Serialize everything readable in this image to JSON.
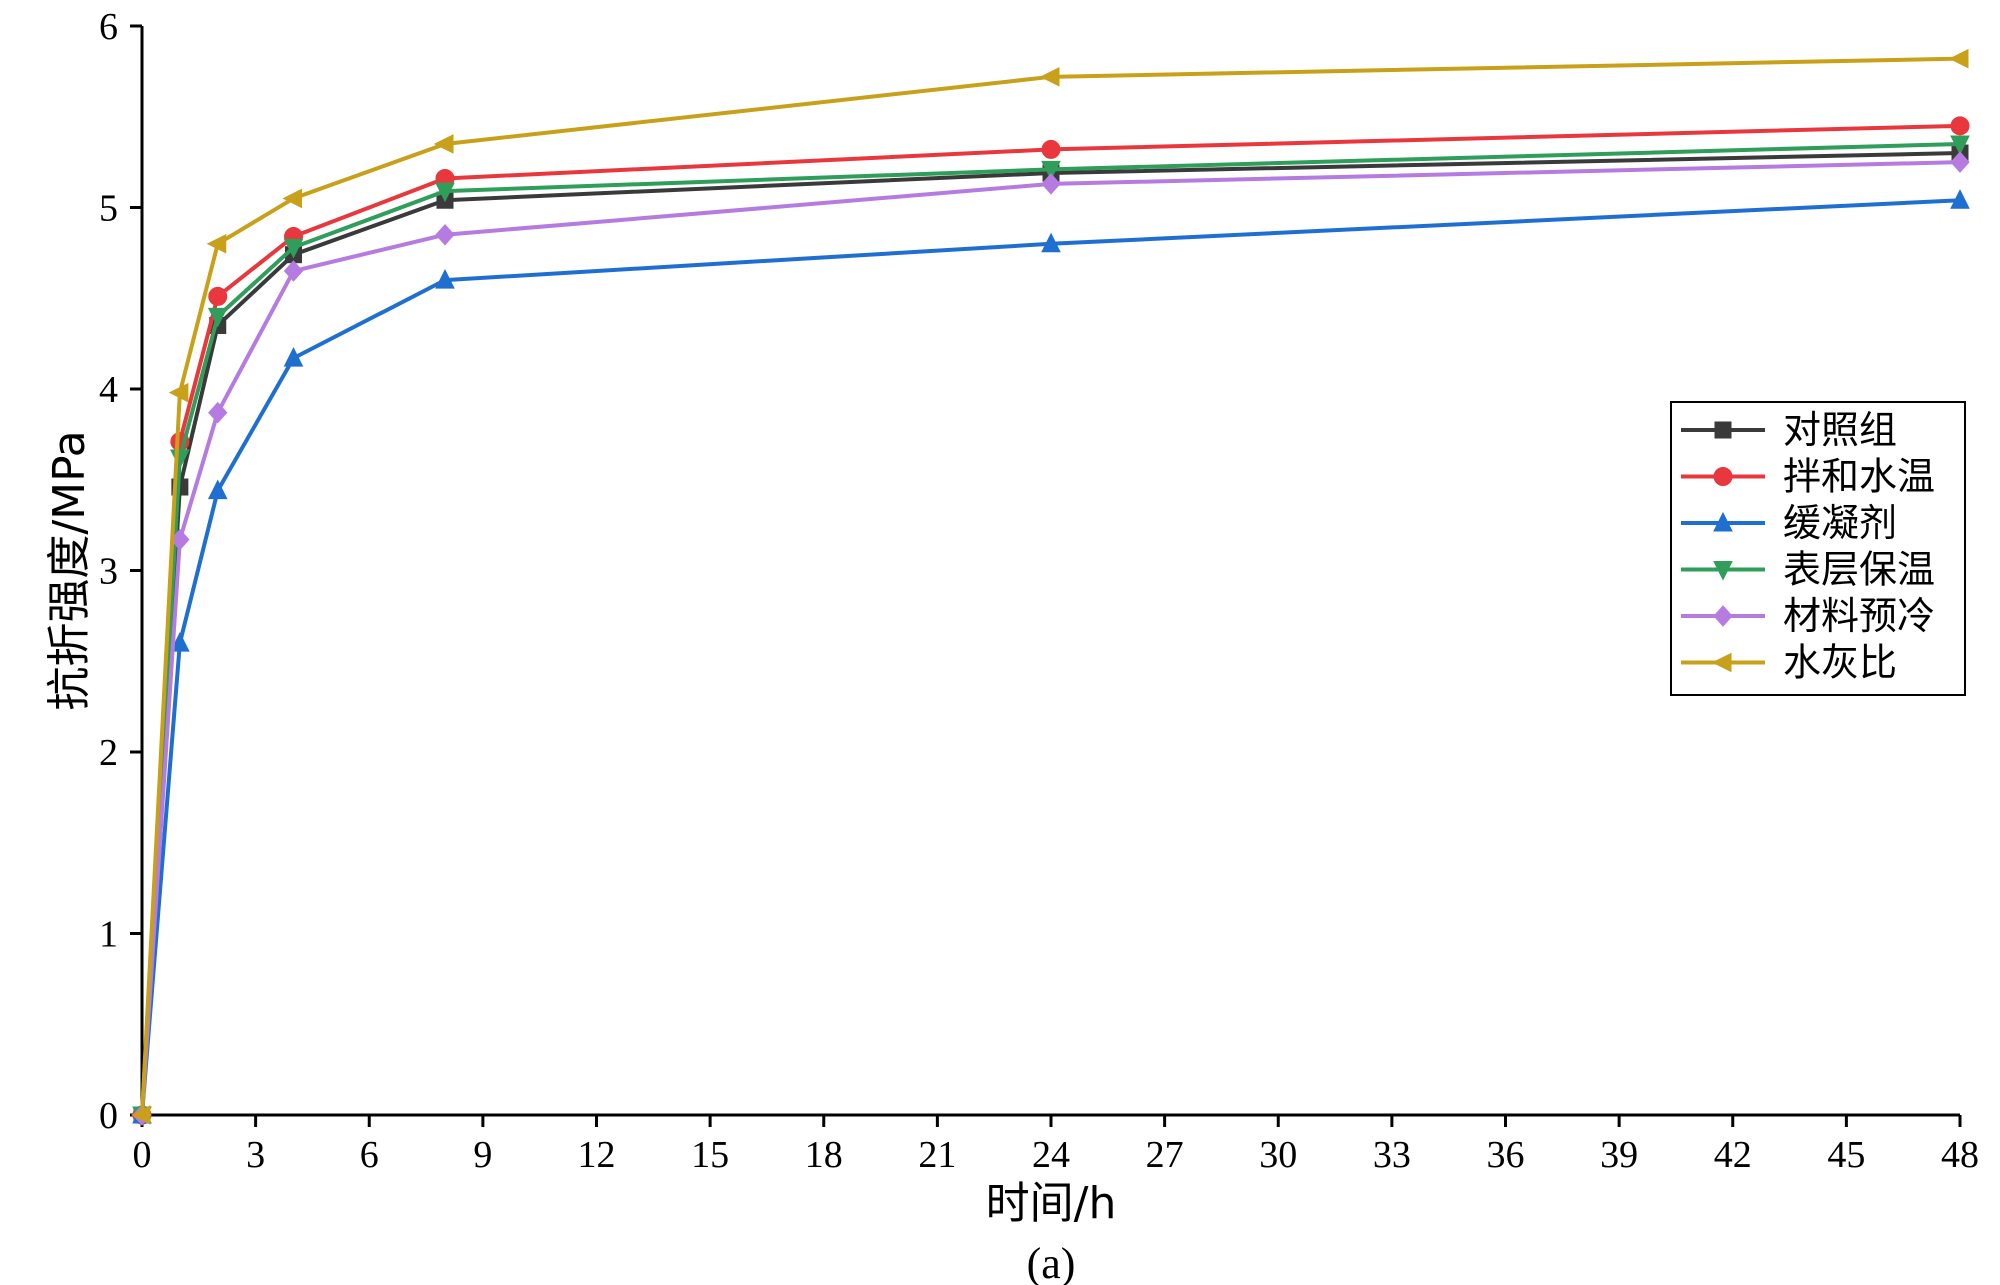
{
  "chart_data": {
    "type": "line",
    "title": "",
    "caption": "(a)",
    "xlabel": "时间/h",
    "ylabel": "抗折强度/MPa",
    "xlim": [
      0,
      48
    ],
    "ylim": [
      0,
      6
    ],
    "xticks": [
      0,
      3,
      6,
      9,
      12,
      15,
      18,
      21,
      24,
      27,
      30,
      33,
      36,
      39,
      42,
      45,
      48
    ],
    "yticks": [
      0,
      1,
      2,
      3,
      4,
      5,
      6
    ],
    "grid": false,
    "legend_position": "right",
    "x": [
      0,
      1,
      2,
      4,
      8,
      24,
      48
    ],
    "series": [
      {
        "name": "对照组",
        "color": "#3a3a3a",
        "marker": "square",
        "values": [
          0,
          3.46,
          4.35,
          4.74,
          5.04,
          5.19,
          5.3
        ]
      },
      {
        "name": "拌和水温",
        "color": "#e8383d",
        "marker": "circle",
        "values": [
          0,
          3.71,
          4.51,
          4.84,
          5.16,
          5.32,
          5.45
        ]
      },
      {
        "name": "缓凝剂",
        "color": "#1f6fd1",
        "marker": "triangle-up",
        "values": [
          0,
          2.6,
          3.44,
          4.17,
          4.6,
          4.8,
          5.04
        ]
      },
      {
        "name": "表层保温",
        "color": "#2e9e5a",
        "marker": "triangle-down",
        "values": [
          0,
          3.62,
          4.4,
          4.78,
          5.09,
          5.21,
          5.35
        ]
      },
      {
        "name": "材料预冷",
        "color": "#b57be0",
        "marker": "diamond",
        "values": [
          0,
          3.17,
          3.87,
          4.65,
          4.85,
          5.13,
          5.25
        ]
      },
      {
        "name": "水灰比",
        "color": "#c9a019",
        "marker": "triangle-left",
        "values": [
          0,
          3.98,
          4.8,
          5.05,
          5.35,
          5.72,
          5.82
        ]
      }
    ]
  }
}
